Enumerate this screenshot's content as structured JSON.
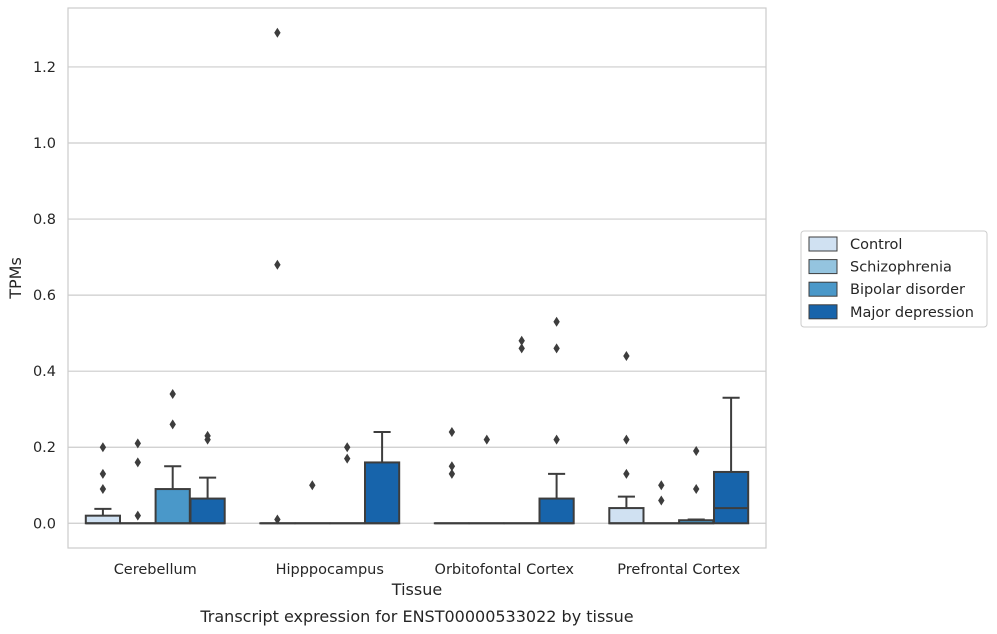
{
  "caption": "Transcript expression for ENST00000533022 by tissue",
  "chart_data": {
    "type": "box",
    "xlabel": "Tissue",
    "ylabel": "TPMs",
    "ylim": [
      -0.065,
      1.355
    ],
    "yticks": [
      0.0,
      0.2,
      0.4,
      0.6,
      0.8,
      1.0,
      1.2
    ],
    "ytick_labels": [
      "0.0",
      "0.2",
      "0.4",
      "0.6",
      "0.8",
      "1.0",
      "1.2"
    ],
    "grid": "horizontal",
    "legend_position": "right",
    "categories": [
      "Cerebellum",
      "Hipppocampus",
      "Orbitofontal Cortex",
      "Prefrontal Cortex"
    ],
    "series": [
      {
        "name": "Control",
        "color": "#d0e1f2",
        "boxes": [
          {
            "q1": 0.0,
            "median": 0.0,
            "q3": 0.02,
            "whislo": 0.0,
            "whishi": 0.038,
            "fliers": [
              0.09,
              0.13,
              0.2
            ]
          },
          {
            "q1": 0.0,
            "median": 0.0,
            "q3": 0.0,
            "whislo": 0.0,
            "whishi": 0.0,
            "fliers": [
              0.01,
              0.68,
              1.29
            ]
          },
          {
            "q1": 0.0,
            "median": 0.0,
            "q3": 0.0,
            "whislo": 0.0,
            "whishi": 0.0,
            "fliers": [
              0.13,
              0.15,
              0.24
            ]
          },
          {
            "q1": 0.0,
            "median": 0.0,
            "q3": 0.04,
            "whislo": 0.0,
            "whishi": 0.07,
            "fliers": [
              0.13,
              0.22,
              0.44
            ]
          }
        ]
      },
      {
        "name": "Schizophrenia",
        "color": "#94c4df",
        "boxes": [
          {
            "q1": 0.0,
            "median": 0.0,
            "q3": 0.0,
            "whislo": 0.0,
            "whishi": 0.0,
            "fliers": [
              0.02,
              0.16,
              0.21
            ]
          },
          {
            "q1": 0.0,
            "median": 0.0,
            "q3": 0.0,
            "whislo": 0.0,
            "whishi": 0.0,
            "fliers": [
              0.1
            ]
          },
          {
            "q1": 0.0,
            "median": 0.0,
            "q3": 0.0,
            "whislo": 0.0,
            "whishi": 0.0,
            "fliers": [
              0.22
            ]
          },
          {
            "q1": 0.0,
            "median": 0.0,
            "q3": 0.0,
            "whislo": 0.0,
            "whishi": 0.0,
            "fliers": [
              0.06,
              0.1
            ]
          }
        ]
      },
      {
        "name": "Bipolar disorder",
        "color": "#4a98c9",
        "boxes": [
          {
            "q1": 0.0,
            "median": 0.0,
            "q3": 0.09,
            "whislo": 0.0,
            "whishi": 0.15,
            "fliers": [
              0.26,
              0.34
            ]
          },
          {
            "q1": 0.0,
            "median": 0.0,
            "q3": 0.0,
            "whislo": 0.0,
            "whishi": 0.0,
            "fliers": [
              0.17,
              0.2
            ]
          },
          {
            "q1": 0.0,
            "median": 0.0,
            "q3": 0.0,
            "whislo": 0.0,
            "whishi": 0.0,
            "fliers": [
              0.46,
              0.48
            ]
          },
          {
            "q1": 0.0,
            "median": 0.0,
            "q3": 0.008,
            "whislo": 0.0,
            "whishi": 0.01,
            "fliers": [
              0.09,
              0.19
            ]
          }
        ]
      },
      {
        "name": "Major depression",
        "color": "#1764ab",
        "boxes": [
          {
            "q1": 0.0,
            "median": 0.0,
            "q3": 0.065,
            "whislo": 0.0,
            "whishi": 0.12,
            "fliers": [
              0.22,
              0.23
            ]
          },
          {
            "q1": 0.0,
            "median": 0.0,
            "q3": 0.16,
            "whislo": 0.0,
            "whishi": 0.24,
            "fliers": []
          },
          {
            "q1": 0.0,
            "median": 0.0,
            "q3": 0.065,
            "whislo": 0.0,
            "whishi": 0.13,
            "fliers": [
              0.22,
              0.46,
              0.53
            ]
          },
          {
            "q1": 0.0,
            "median": 0.04,
            "q3": 0.135,
            "whislo": 0.0,
            "whishi": 0.33,
            "fliers": []
          }
        ]
      }
    ]
  }
}
